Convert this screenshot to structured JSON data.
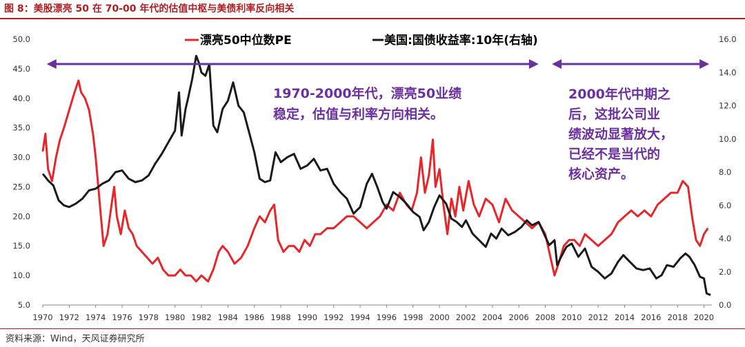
{
  "title": "图 8：美股漂亮 50 在 70-00 年代的估值中枢与美债利率反向相关",
  "source": "资料来源：Wind，天风证券研究所",
  "colors": {
    "pe": "#e8262a",
    "yield": "#1a1a1a",
    "arrow": "#6b2fa0",
    "annotation": "#6b2fa0",
    "brand": "#b01e23"
  },
  "chart_data": {
    "type": "line",
    "legend": [
      "漂亮50中位数PE",
      "美国:国债收益率:10年(右轴)"
    ],
    "x_ticks": [
      "1970",
      "1972",
      "1974",
      "1976",
      "1978",
      "1980",
      "1982",
      "1984",
      "1986",
      "1988",
      "1990",
      "1992",
      "1994",
      "1996",
      "1998",
      "2000",
      "2002",
      "2004",
      "2006",
      "2008",
      "2010",
      "2012",
      "2014",
      "2016",
      "2018",
      "2020"
    ],
    "y_left": {
      "ticks": [
        "50.0",
        "45.0",
        "40.0",
        "35.0",
        "30.0",
        "25.0",
        "20.0",
        "15.0",
        "10.0",
        "5.0"
      ],
      "range": [
        5,
        50
      ]
    },
    "y_right": {
      "ticks": [
        "16.0",
        "14.0",
        "12.0",
        "10.0",
        "8.0",
        "6.0",
        "4.0",
        "2.0",
        "0.0"
      ],
      "range": [
        0,
        16
      ]
    },
    "x_range": [
      1970,
      2020.6
    ],
    "annotations": [
      {
        "lines": [
          "1970-2000年代，漂亮50业绩",
          "稳定，估值与利率方向相关。"
        ]
      },
      {
        "lines": [
          "2000年代中期之",
          "后，这批公司业",
          "绩波动显著放大，",
          "已经不是当代的",
          "核心资产。"
        ]
      }
    ],
    "arrows": [
      {
        "from": 1970.3,
        "to": 2007.5
      },
      {
        "from": 2008.5,
        "to": 2020.4
      }
    ],
    "series": [
      {
        "name": "漂亮50中位数PE",
        "axis": "left",
        "points": [
          [
            1970.0,
            31
          ],
          [
            1970.2,
            34
          ],
          [
            1970.4,
            28
          ],
          [
            1970.7,
            26
          ],
          [
            1971.0,
            30
          ],
          [
            1971.3,
            33
          ],
          [
            1971.6,
            35
          ],
          [
            1972.0,
            38
          ],
          [
            1972.4,
            41
          ],
          [
            1972.7,
            43
          ],
          [
            1972.9,
            41
          ],
          [
            1973.2,
            40
          ],
          [
            1973.5,
            38
          ],
          [
            1973.8,
            34
          ],
          [
            1974.0,
            30
          ],
          [
            1974.2,
            25
          ],
          [
            1974.4,
            20
          ],
          [
            1974.6,
            15
          ],
          [
            1974.9,
            17
          ],
          [
            1975.2,
            22
          ],
          [
            1975.4,
            25
          ],
          [
            1975.6,
            20
          ],
          [
            1975.9,
            17
          ],
          [
            1976.2,
            21
          ],
          [
            1976.5,
            18
          ],
          [
            1976.8,
            17
          ],
          [
            1977.1,
            15
          ],
          [
            1977.5,
            14
          ],
          [
            1977.9,
            13
          ],
          [
            1978.3,
            12
          ],
          [
            1978.7,
            13
          ],
          [
            1979.1,
            11
          ],
          [
            1979.5,
            10
          ],
          [
            1980.0,
            10
          ],
          [
            1980.4,
            11
          ],
          [
            1980.8,
            10
          ],
          [
            1981.2,
            10
          ],
          [
            1981.6,
            9
          ],
          [
            1982.0,
            10
          ],
          [
            1982.5,
            9
          ],
          [
            1982.9,
            11
          ],
          [
            1983.3,
            14
          ],
          [
            1983.6,
            15
          ],
          [
            1984.0,
            14
          ],
          [
            1984.5,
            12
          ],
          [
            1985.0,
            13
          ],
          [
            1985.5,
            15
          ],
          [
            1986.0,
            18
          ],
          [
            1986.4,
            20
          ],
          [
            1986.8,
            19
          ],
          [
            1987.2,
            21
          ],
          [
            1987.5,
            22
          ],
          [
            1987.8,
            16
          ],
          [
            1988.2,
            14
          ],
          [
            1988.6,
            15
          ],
          [
            1989.0,
            15
          ],
          [
            1989.4,
            14
          ],
          [
            1989.8,
            16
          ],
          [
            1990.2,
            15
          ],
          [
            1990.6,
            17
          ],
          [
            1991.0,
            17
          ],
          [
            1991.5,
            18
          ],
          [
            1992.0,
            18
          ],
          [
            1992.5,
            19
          ],
          [
            1993.0,
            20
          ],
          [
            1993.5,
            20
          ],
          [
            1994.0,
            19
          ],
          [
            1994.5,
            18
          ],
          [
            1995.0,
            19
          ],
          [
            1995.5,
            20
          ],
          [
            1996.0,
            22
          ],
          [
            1996.5,
            21
          ],
          [
            1997.0,
            24
          ],
          [
            1997.5,
            22
          ],
          [
            1997.9,
            21
          ],
          [
            1998.3,
            24
          ],
          [
            1998.6,
            30
          ],
          [
            1998.9,
            24
          ],
          [
            1999.2,
            27
          ],
          [
            1999.5,
            33
          ],
          [
            1999.7,
            25
          ],
          [
            2000.0,
            28
          ],
          [
            2000.3,
            22
          ],
          [
            2000.6,
            17
          ],
          [
            2000.9,
            23
          ],
          [
            2001.2,
            20
          ],
          [
            2001.5,
            25
          ],
          [
            2001.8,
            21
          ],
          [
            2002.2,
            26
          ],
          [
            2002.6,
            22
          ],
          [
            2003.0,
            20
          ],
          [
            2003.5,
            23
          ],
          [
            2004.0,
            22
          ],
          [
            2004.5,
            19
          ],
          [
            2005.0,
            23
          ],
          [
            2005.5,
            21
          ],
          [
            2006.0,
            20
          ],
          [
            2006.5,
            19
          ],
          [
            2007.0,
            18
          ],
          [
            2007.5,
            19
          ],
          [
            2008.0,
            17
          ],
          [
            2008.4,
            13
          ],
          [
            2008.7,
            10
          ],
          [
            2009.0,
            12
          ],
          [
            2009.4,
            15
          ],
          [
            2009.8,
            16
          ],
          [
            2010.2,
            16
          ],
          [
            2010.6,
            15
          ],
          [
            2011.0,
            17
          ],
          [
            2011.5,
            16
          ],
          [
            2012.0,
            15
          ],
          [
            2012.5,
            16
          ],
          [
            2013.0,
            17
          ],
          [
            2013.5,
            19
          ],
          [
            2014.0,
            20
          ],
          [
            2014.5,
            21
          ],
          [
            2015.0,
            20
          ],
          [
            2015.5,
            21
          ],
          [
            2016.0,
            20
          ],
          [
            2016.5,
            22
          ],
          [
            2017.0,
            23
          ],
          [
            2017.5,
            24
          ],
          [
            2018.0,
            24
          ],
          [
            2018.4,
            26
          ],
          [
            2018.8,
            25
          ],
          [
            2019.1,
            20
          ],
          [
            2019.4,
            16
          ],
          [
            2019.7,
            15
          ],
          [
            2020.0,
            17
          ],
          [
            2020.3,
            18
          ]
        ]
      },
      {
        "name": "美国:国债收益率:10年(右轴)",
        "axis": "right",
        "points": [
          [
            1970.0,
            7.9
          ],
          [
            1970.4,
            7.5
          ],
          [
            1970.8,
            7.2
          ],
          [
            1971.2,
            6.3
          ],
          [
            1971.6,
            6.0
          ],
          [
            1972.0,
            5.9
          ],
          [
            1972.5,
            6.1
          ],
          [
            1973.0,
            6.4
          ],
          [
            1973.5,
            6.9
          ],
          [
            1974.0,
            7.0
          ],
          [
            1974.5,
            7.3
          ],
          [
            1975.0,
            7.5
          ],
          [
            1975.5,
            8.0
          ],
          [
            1976.0,
            8.1
          ],
          [
            1976.5,
            7.6
          ],
          [
            1977.0,
            7.4
          ],
          [
            1977.5,
            7.5
          ],
          [
            1978.0,
            7.8
          ],
          [
            1978.5,
            8.5
          ],
          [
            1979.0,
            9.1
          ],
          [
            1979.5,
            9.8
          ],
          [
            1980.0,
            10.5
          ],
          [
            1980.3,
            12.8
          ],
          [
            1980.5,
            10.2
          ],
          [
            1980.8,
            11.8
          ],
          [
            1981.0,
            12.5
          ],
          [
            1981.3,
            13.6
          ],
          [
            1981.6,
            15.0
          ],
          [
            1981.8,
            14.6
          ],
          [
            1982.0,
            14.0
          ],
          [
            1982.3,
            13.8
          ],
          [
            1982.6,
            14.5
          ],
          [
            1982.9,
            10.8
          ],
          [
            1983.2,
            10.4
          ],
          [
            1983.6,
            11.8
          ],
          [
            1984.0,
            12.3
          ],
          [
            1984.4,
            13.4
          ],
          [
            1984.8,
            12.0
          ],
          [
            1985.2,
            11.6
          ],
          [
            1985.6,
            10.4
          ],
          [
            1986.0,
            9.2
          ],
          [
            1986.4,
            7.6
          ],
          [
            1986.8,
            7.4
          ],
          [
            1987.2,
            7.5
          ],
          [
            1987.6,
            9.2
          ],
          [
            1988.0,
            8.6
          ],
          [
            1988.5,
            8.9
          ],
          [
            1989.0,
            9.1
          ],
          [
            1989.5,
            8.2
          ],
          [
            1990.0,
            8.4
          ],
          [
            1990.5,
            8.8
          ],
          [
            1991.0,
            8.1
          ],
          [
            1991.5,
            8.2
          ],
          [
            1992.0,
            7.3
          ],
          [
            1992.5,
            6.8
          ],
          [
            1993.0,
            6.4
          ],
          [
            1993.5,
            5.5
          ],
          [
            1994.0,
            5.9
          ],
          [
            1994.5,
            7.3
          ],
          [
            1994.9,
            7.9
          ],
          [
            1995.3,
            7.1
          ],
          [
            1995.7,
            6.2
          ],
          [
            1996.0,
            5.8
          ],
          [
            1996.5,
            6.8
          ],
          [
            1997.0,
            6.5
          ],
          [
            1997.5,
            6.1
          ],
          [
            1998.0,
            5.6
          ],
          [
            1998.5,
            5.3
          ],
          [
            1998.8,
            4.5
          ],
          [
            1999.2,
            5.0
          ],
          [
            1999.6,
            5.9
          ],
          [
            2000.0,
            6.6
          ],
          [
            2000.5,
            6.1
          ],
          [
            2000.9,
            5.2
          ],
          [
            2001.3,
            5.0
          ],
          [
            2001.7,
            4.7
          ],
          [
            2002.0,
            5.1
          ],
          [
            2002.5,
            4.3
          ],
          [
            2003.0,
            3.9
          ],
          [
            2003.5,
            3.5
          ],
          [
            2003.9,
            4.3
          ],
          [
            2004.3,
            4.0
          ],
          [
            2004.7,
            4.6
          ],
          [
            2005.2,
            4.2
          ],
          [
            2005.7,
            4.4
          ],
          [
            2006.2,
            4.7
          ],
          [
            2006.6,
            5.1
          ],
          [
            2007.0,
            4.8
          ],
          [
            2007.5,
            5.0
          ],
          [
            2007.9,
            4.3
          ],
          [
            2008.3,
            3.6
          ],
          [
            2008.7,
            3.9
          ],
          [
            2008.9,
            2.4
          ],
          [
            2009.2,
            2.9
          ],
          [
            2009.6,
            3.5
          ],
          [
            2010.0,
            3.7
          ],
          [
            2010.5,
            2.9
          ],
          [
            2011.0,
            3.4
          ],
          [
            2011.5,
            2.3
          ],
          [
            2012.0,
            2.0
          ],
          [
            2012.5,
            1.6
          ],
          [
            2013.0,
            1.9
          ],
          [
            2013.5,
            2.6
          ],
          [
            2013.9,
            3.0
          ],
          [
            2014.4,
            2.6
          ],
          [
            2014.9,
            2.2
          ],
          [
            2015.4,
            2.1
          ],
          [
            2015.9,
            2.2
          ],
          [
            2016.4,
            1.6
          ],
          [
            2016.8,
            1.8
          ],
          [
            2017.2,
            2.4
          ],
          [
            2017.7,
            2.3
          ],
          [
            2018.2,
            2.8
          ],
          [
            2018.6,
            3.1
          ],
          [
            2018.9,
            2.9
          ],
          [
            2019.3,
            2.4
          ],
          [
            2019.7,
            1.7
          ],
          [
            2020.0,
            1.6
          ],
          [
            2020.2,
            0.7
          ],
          [
            2020.5,
            0.6
          ]
        ]
      }
    ]
  }
}
